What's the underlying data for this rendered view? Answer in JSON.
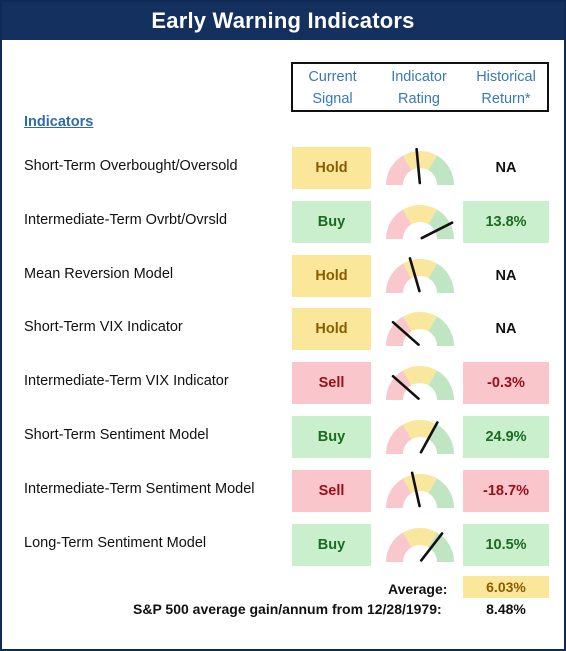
{
  "title": "Early Warning Indicators",
  "columns": {
    "signal": [
      "Current",
      "Signal"
    ],
    "rating": [
      "Indicator",
      "Rating"
    ],
    "return": [
      "Historical",
      "Return*"
    ]
  },
  "section_label": "Indicators",
  "colors": {
    "header_bg": "#13305f",
    "hold": "#fbe79a",
    "buy": "#c9efcc",
    "sell": "#f9c6cc",
    "gauge_red": "#f8c8cc",
    "gauge_yellow": "#f8e79d",
    "gauge_green": "#bfe5c3"
  },
  "rows": [
    {
      "name": "Short-Term Overbought/Oversold",
      "signal": "Hold",
      "signal_type": "hold",
      "rating": 0.47,
      "return": "NA",
      "return_type": "na"
    },
    {
      "name": "Intermediate-Term Ovrbt/Ovrsld",
      "signal": "Buy",
      "signal_type": "buy",
      "rating": 0.85,
      "return": "13.8%",
      "return_type": "pos"
    },
    {
      "name": "Mean Reversion Model",
      "signal": "Hold",
      "signal_type": "hold",
      "rating": 0.41,
      "return": "NA",
      "return_type": "na"
    },
    {
      "name": "Short-Term VIX Indicator",
      "signal": "Hold",
      "signal_type": "hold",
      "rating": 0.23,
      "return": "NA",
      "return_type": "na"
    },
    {
      "name": "Intermediate-Term VIX Indicator",
      "signal": "Sell",
      "signal_type": "sell",
      "rating": 0.23,
      "return": "-0.3%",
      "return_type": "neg"
    },
    {
      "name": "Short-Term Sentiment Model",
      "signal": "Buy",
      "signal_type": "buy",
      "rating": 0.66,
      "return": "24.9%",
      "return_type": "pos"
    },
    {
      "name": "Intermediate-Term Sentiment Model",
      "signal": "Sell",
      "signal_type": "sell",
      "rating": 0.43,
      "return": "-18.7%",
      "return_type": "neg"
    },
    {
      "name": "Long-Term Sentiment Model",
      "signal": "Buy",
      "signal_type": "buy",
      "rating": 0.71,
      "return": "10.5%",
      "return_type": "pos"
    }
  ],
  "average": {
    "label": "Average:",
    "value": "6.03%"
  },
  "sp500": {
    "label": "S&P 500 average gain/annum from 12/28/1979:",
    "value": "8.48%"
  }
}
